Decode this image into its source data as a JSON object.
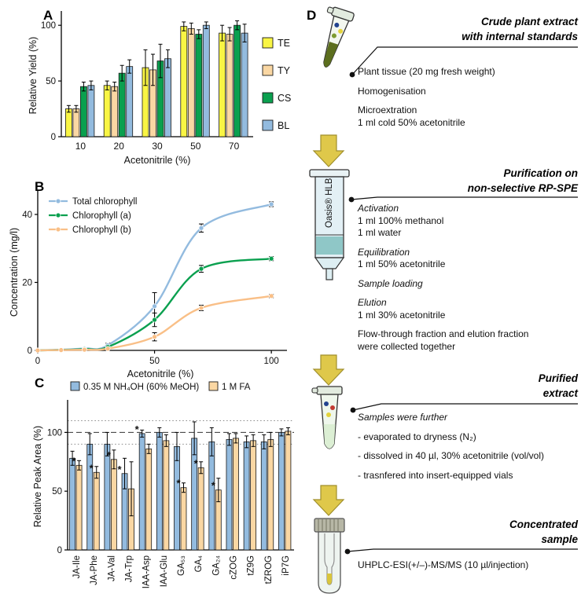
{
  "figure": {
    "panel_labels": [
      "A",
      "B",
      "C",
      "D"
    ]
  },
  "chart_data": [
    {
      "panel": "A",
      "type": "bar",
      "title": "",
      "xlabel": "Acetonitrile (%)",
      "ylabel": "Relative Yield (%)",
      "ylim": [
        0,
        110
      ],
      "yticks": [
        0,
        50,
        100
      ],
      "legend_position": "right",
      "categories": [
        "10",
        "20",
        "30",
        "50",
        "70"
      ],
      "series": [
        {
          "name": "TE",
          "color": "#f9f544",
          "values": [
            25,
            46,
            62,
            99,
            93
          ],
          "errors": [
            3,
            4,
            16,
            4,
            7
          ]
        },
        {
          "name": "TY",
          "color": "#fad7a3",
          "values": [
            25,
            45,
            60,
            97,
            92
          ],
          "errors": [
            3,
            4,
            14,
            5,
            6
          ]
        },
        {
          "name": "CS",
          "color": "#0aa04f",
          "values": [
            45,
            57,
            68,
            92,
            100
          ],
          "errors": [
            4,
            7,
            15,
            4,
            4
          ]
        },
        {
          "name": "BL",
          "color": "#93bbdf",
          "values": [
            46,
            63,
            70,
            100,
            93
          ],
          "errors": [
            4,
            6,
            8,
            3,
            8
          ]
        }
      ]
    },
    {
      "panel": "B",
      "type": "line",
      "title": "",
      "xlabel": "Acetonitrile (%)",
      "ylabel": "Concentration (mg/l)",
      "xlim": [
        0,
        105
      ],
      "ylim": [
        0,
        46
      ],
      "xticks": [
        0,
        50,
        100
      ],
      "yticks": [
        0,
        20,
        40
      ],
      "legend_position": "top-left",
      "x": [
        0,
        10,
        20,
        30,
        50,
        70,
        100
      ],
      "series": [
        {
          "name": "Total chlorophyll",
          "color": "#93bbdf",
          "y": [
            0,
            0.2,
            0.6,
            1.5,
            13,
            36,
            43
          ],
          "errors": [
            0,
            0,
            0,
            0.6,
            4,
            1.2,
            0.7
          ]
        },
        {
          "name": "Chlorophyll (a)",
          "color": "#0aa04f",
          "y": [
            0,
            0.15,
            0.4,
            1,
            9,
            24,
            27
          ],
          "errors": [
            0,
            0,
            0,
            0.4,
            2,
            1,
            0.6
          ]
        },
        {
          "name": "Chlorophyll (b)",
          "color": "#f9bf87",
          "y": [
            0,
            0.1,
            0.2,
            0.5,
            4,
            12.5,
            16
          ],
          "errors": [
            0,
            0,
            0,
            0.3,
            1.2,
            0.8,
            0.5
          ]
        }
      ]
    },
    {
      "panel": "C",
      "type": "bar",
      "title": "",
      "xlabel": "",
      "ylabel": "Relative Peak Area (%)",
      "ylim": [
        0,
        125
      ],
      "yticks": [
        0,
        50,
        100
      ],
      "legend_position": "top",
      "ref_lines": [
        {
          "y": 110,
          "style": "dotted"
        },
        {
          "y": 100,
          "style": "dashed"
        },
        {
          "y": 90,
          "style": "dotted"
        }
      ],
      "categories": [
        "JA-Ile",
        "JA-Phe",
        "JA-Val",
        "JA-Trp",
        "IAA-Asp",
        "IAA-Glu",
        "GA₅₃",
        "GA₄",
        "GA₂₄",
        "cZOG",
        "tZ9G",
        "tZROG",
        "iP7G"
      ],
      "series": [
        {
          "name": "0.35 M NH₄OH (60% MeOH)",
          "color": "#93bbdf",
          "values": [
            78,
            90,
            90,
            65,
            99,
            100,
            88,
            95,
            92,
            94,
            92,
            92,
            100
          ],
          "errors": [
            6,
            9,
            10,
            13,
            3,
            4,
            12,
            14,
            12,
            5,
            5,
            6,
            3
          ],
          "sig": [
            false,
            false,
            false,
            true,
            true,
            false,
            false,
            false,
            false,
            false,
            false,
            false,
            false
          ]
        },
        {
          "name": "1 M FA",
          "color": "#fad7a3",
          "values": [
            72,
            66,
            77,
            52,
            86,
            93,
            53,
            70,
            51,
            95,
            93,
            94,
            101
          ],
          "errors": [
            4,
            5,
            8,
            23,
            4,
            5,
            4,
            5,
            10,
            4,
            5,
            6,
            3
          ],
          "sig": [
            true,
            true,
            true,
            false,
            false,
            false,
            true,
            true,
            true,
            false,
            false,
            false,
            false
          ]
        }
      ]
    }
  ],
  "workflow": {
    "label": "D",
    "column_label": "Oasis® HLB",
    "arrow_color": "#dfc84a",
    "stages": [
      {
        "title": "Crude plant extract\nwith internal standards",
        "groups": [
          [
            {
              "t": "Plant tissue (20 mg fresh weight)"
            }
          ],
          [
            {
              "t": "Homogenisation"
            }
          ],
          [
            {
              "t": "Microextration"
            },
            {
              "t": "1 ml cold 50% acetonitrile"
            }
          ]
        ]
      },
      {
        "title": "Purification on\nnon-selective RP-SPE",
        "groups": [
          [
            {
              "t": "Activation",
              "i": true
            },
            {
              "t": "1 ml 100% methanol"
            },
            {
              "t": "1 ml water"
            }
          ],
          [
            {
              "t": "Equilibration",
              "i": true
            },
            {
              "t": "1 ml 50% acetonitrile"
            }
          ],
          [
            {
              "t": "Sample loading",
              "i": true
            }
          ],
          [
            {
              "t": "Elution",
              "i": true
            },
            {
              "t": "1 ml 30% acetonitrile"
            }
          ],
          [
            {
              "t": "Flow-through fraction and elution fraction"
            },
            {
              "t": "were collected together"
            }
          ]
        ]
      },
      {
        "title": "Purified\nextract",
        "groups": [
          [
            {
              "t": "Samples were further",
              "i": true
            }
          ],
          [
            {
              "t": "- evaporated to dryness (N₂)"
            }
          ],
          [
            {
              "t": "- dissolved in 40 µl, 30% acetonitrile (vol/vol)"
            }
          ],
          [
            {
              "t": "- trasnfered into insert-equipped vials"
            }
          ]
        ]
      },
      {
        "title": "Concentrated\nsample",
        "groups": [
          [
            {
              "t": "UHPLC-ESI(+/–)-MS/MS (10 µl/injection)"
            }
          ]
        ]
      }
    ]
  }
}
